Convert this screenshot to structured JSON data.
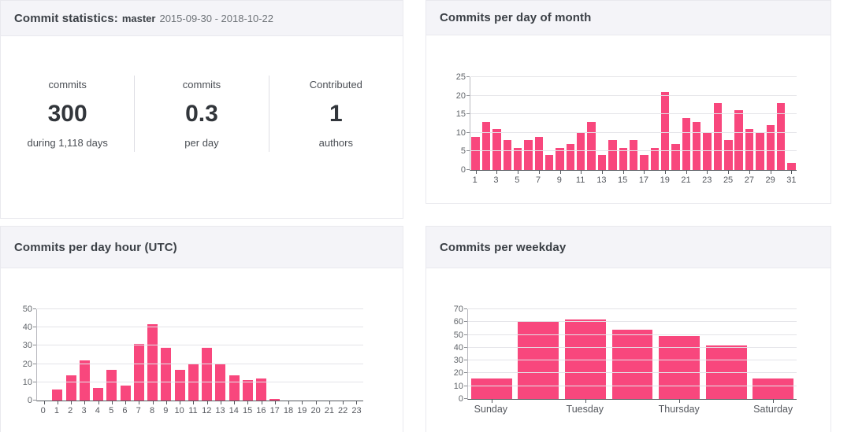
{
  "colors": {
    "bar": "#f8477d",
    "panel_header_bg": "#f4f4f8",
    "gridline": "#e4e4e8"
  },
  "stats_panel": {
    "title": "Commit statistics:",
    "branch": "master",
    "date_range": "2015-09-30 - 2018-10-22",
    "items": [
      {
        "label": "commits",
        "value": "300",
        "sub": "during 1,118 days"
      },
      {
        "label": "commits",
        "value": "0.3",
        "sub": "per day"
      },
      {
        "label": "Contributed",
        "value": "1",
        "sub": "authors"
      }
    ]
  },
  "chart_data": [
    {
      "id": "month",
      "type": "bar",
      "title": "Commits per day of month",
      "categories": [
        "1",
        "2",
        "3",
        "4",
        "5",
        "6",
        "7",
        "8",
        "9",
        "10",
        "11",
        "12",
        "13",
        "14",
        "15",
        "16",
        "17",
        "18",
        "19",
        "20",
        "21",
        "22",
        "23",
        "24",
        "25",
        "26",
        "27",
        "28",
        "29",
        "30",
        "31"
      ],
      "values": [
        9,
        13,
        11,
        8,
        6,
        8,
        9,
        4,
        6,
        7,
        10,
        13,
        4,
        8,
        6,
        8,
        4,
        6,
        21,
        7,
        14,
        13,
        10,
        18,
        8,
        16,
        11,
        10,
        12,
        18,
        2
      ],
      "xlabel": "",
      "ylabel": "",
      "ylim": [
        0,
        25
      ],
      "ytick": 5,
      "xtick_every": 2,
      "grid": true,
      "legend": false
    },
    {
      "id": "hour",
      "type": "bar",
      "title": "Commits per day hour (UTC)",
      "categories": [
        "0",
        "1",
        "2",
        "3",
        "4",
        "5",
        "6",
        "7",
        "8",
        "9",
        "10",
        "11",
        "12",
        "13",
        "14",
        "15",
        "16",
        "17",
        "18",
        "19",
        "20",
        "21",
        "22",
        "23"
      ],
      "values": [
        0,
        6,
        14,
        22,
        7,
        17,
        8,
        31,
        42,
        29,
        17,
        20,
        29,
        20,
        14,
        11,
        12,
        1,
        0,
        0,
        0,
        0,
        0,
        0
      ],
      "xlabel": "",
      "ylabel": "",
      "ylim": [
        0,
        50
      ],
      "ytick": 10,
      "xtick_every": 1,
      "grid": true,
      "legend": false
    },
    {
      "id": "weekday",
      "type": "bar",
      "title": "Commits per weekday",
      "categories": [
        "Sunday",
        "Monday",
        "Tuesday",
        "Wednesday",
        "Thursday",
        "Friday",
        "Saturday"
      ],
      "values": [
        16,
        61,
        62,
        54,
        49,
        42,
        16
      ],
      "xlabel": "",
      "ylabel": "",
      "ylim": [
        0,
        70
      ],
      "ytick": 10,
      "xtick_every": 2,
      "grid": true,
      "legend": false
    }
  ]
}
